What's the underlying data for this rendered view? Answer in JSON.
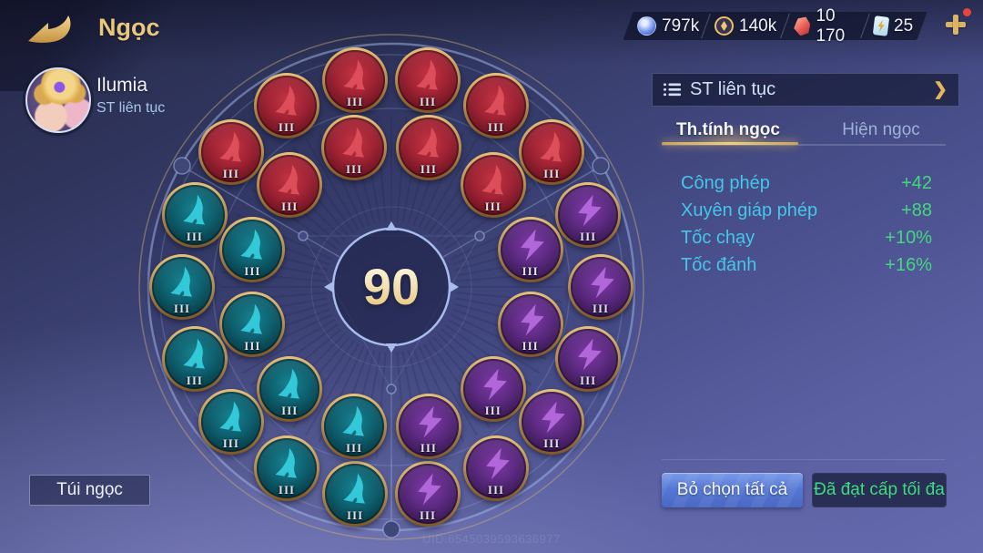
{
  "header": {
    "title": "Ngọc"
  },
  "currencies": [
    {
      "icon": "orb-icon",
      "value": "797k"
    },
    {
      "icon": "coin-icon",
      "value": "140k"
    },
    {
      "icon": "gem-icon",
      "value": "10 170"
    },
    {
      "icon": "card-icon",
      "value": "25"
    }
  ],
  "player": {
    "name": "Ilumia",
    "build_label": "ST liên tục"
  },
  "panel": {
    "header_label": "ST liên tục",
    "chevron": "❯",
    "tabs": [
      {
        "label": "Th.tính ngọc",
        "active": true
      },
      {
        "label": "Hiện ngọc",
        "active": false
      }
    ],
    "stats": [
      {
        "label": "Công phép",
        "value": "+42"
      },
      {
        "label": "Xuyên giáp phép",
        "value": "+88"
      },
      {
        "label": "Tốc chạy",
        "value": "+10%"
      },
      {
        "label": "Tốc đánh",
        "value": "+16%"
      }
    ],
    "buttons": {
      "deselect": "Bỏ chọn tất cả",
      "max_level": "Đã đạt cấp tối đa"
    }
  },
  "wheel": {
    "level_total": "90",
    "runes": [
      {
        "type": "red",
        "ring": "outer",
        "angle": 310,
        "level": "III"
      },
      {
        "type": "red",
        "ring": "outer",
        "angle": 330,
        "level": "III"
      },
      {
        "type": "red",
        "ring": "outer",
        "angle": 350,
        "level": "III"
      },
      {
        "type": "red",
        "ring": "outer",
        "angle": 10,
        "level": "III"
      },
      {
        "type": "red",
        "ring": "outer",
        "angle": 30,
        "level": "III"
      },
      {
        "type": "red",
        "ring": "outer",
        "angle": 50,
        "level": "III"
      },
      {
        "type": "red",
        "ring": "inner",
        "angle": 315,
        "level": "III"
      },
      {
        "type": "red",
        "ring": "inner",
        "angle": 345,
        "level": "III"
      },
      {
        "type": "red",
        "ring": "inner",
        "angle": 15,
        "level": "III"
      },
      {
        "type": "red",
        "ring": "inner",
        "angle": 45,
        "level": "III"
      },
      {
        "type": "purple",
        "ring": "outer",
        "angle": 70,
        "level": "III"
      },
      {
        "type": "purple",
        "ring": "outer",
        "angle": 90,
        "level": "III"
      },
      {
        "type": "purple",
        "ring": "outer",
        "angle": 110,
        "level": "III"
      },
      {
        "type": "purple",
        "ring": "outer",
        "angle": 130,
        "level": "III"
      },
      {
        "type": "purple",
        "ring": "outer",
        "angle": 150,
        "level": "III"
      },
      {
        "type": "purple",
        "ring": "outer",
        "angle": 170,
        "level": "III"
      },
      {
        "type": "purple",
        "ring": "inner",
        "angle": 75,
        "level": "III"
      },
      {
        "type": "purple",
        "ring": "inner",
        "angle": 105,
        "level": "III"
      },
      {
        "type": "purple",
        "ring": "inner",
        "angle": 135,
        "level": "III"
      },
      {
        "type": "purple",
        "ring": "inner",
        "angle": 165,
        "level": "III"
      },
      {
        "type": "teal",
        "ring": "outer",
        "angle": 190,
        "level": "III"
      },
      {
        "type": "teal",
        "ring": "outer",
        "angle": 210,
        "level": "III"
      },
      {
        "type": "teal",
        "ring": "outer",
        "angle": 230,
        "level": "III"
      },
      {
        "type": "teal",
        "ring": "outer",
        "angle": 250,
        "level": "III"
      },
      {
        "type": "teal",
        "ring": "outer",
        "angle": 270,
        "level": "III"
      },
      {
        "type": "teal",
        "ring": "outer",
        "angle": 290,
        "level": "III"
      },
      {
        "type": "teal",
        "ring": "inner",
        "angle": 195,
        "level": "III"
      },
      {
        "type": "teal",
        "ring": "inner",
        "angle": 225,
        "level": "III"
      },
      {
        "type": "teal",
        "ring": "inner",
        "angle": 255,
        "level": "III"
      },
      {
        "type": "teal",
        "ring": "inner",
        "angle": 285,
        "level": "III"
      }
    ]
  },
  "footer": {
    "bag_button": "Túi ngọc",
    "uid": "UID:6545039593636977"
  },
  "colors": {
    "accent_gold": "#e9c87e",
    "stat_label_cyan": "#45c6ea",
    "stat_value_green": "#42d97d",
    "button_blue": "#5577d4",
    "rune_red": "#a02334",
    "rune_teal": "#0e6170",
    "rune_purple": "#5d2a82"
  }
}
